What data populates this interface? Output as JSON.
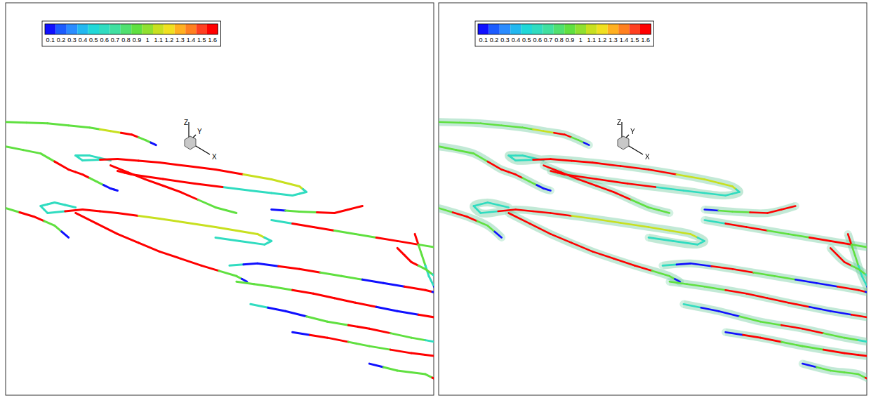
{
  "chart_data": [
    {
      "type": "line",
      "xlim": [
        0,
        612
      ],
      "ylim": [
        560,
        0
      ],
      "tick_labels": false,
      "triad": {
        "x": "X",
        "y": "Y",
        "z": "Z"
      },
      "colorbar": {
        "range": [
          0.05,
          1.65
        ],
        "ticks": [
          0.1,
          0.2,
          0.3,
          0.4,
          0.5,
          0.6,
          0.7,
          0.8,
          0.9,
          1,
          1.1,
          1.2,
          1.3,
          1.4,
          1.5,
          1.6
        ],
        "colors": [
          "#1010ff",
          "#1c5cff",
          "#2a8cff",
          "#22b8f0",
          "#20d8d8",
          "#30dcc0",
          "#40e0a0",
          "#50e070",
          "#60e040",
          "#90e030",
          "#c8e020",
          "#f0e020",
          "#ffb020",
          "#ff8020",
          "#ff4020",
          "#ff0000"
        ]
      },
      "series": [
        {
          "x": [
            0,
            60,
            120,
            150,
            180,
            200,
            215
          ],
          "y": [
            170,
            172,
            178,
            183,
            188,
            196,
            203
          ],
          "values": [
            0.9,
            0.9,
            0.9,
            1.1,
            1.6,
            0.9,
            0.1
          ]
        },
        {
          "x": [
            0,
            50,
            90,
            110,
            130,
            150,
            160
          ],
          "y": [
            205,
            215,
            238,
            245,
            255,
            265,
            268
          ],
          "values": [
            0.9,
            0.9,
            1.6,
            1.6,
            0.9,
            0.1,
            0.1
          ]
        },
        {
          "x": [
            150,
            120,
            100,
            110,
            160,
            220,
            300,
            380,
            420,
            430,
            410,
            350,
            270,
            180,
            160
          ],
          "y": [
            225,
            218,
            218,
            225,
            223,
            228,
            238,
            252,
            262,
            270,
            275,
            268,
            258,
            245,
            240
          ],
          "values": [
            0.6,
            0.6,
            0.6,
            0.6,
            1.6,
            1.6,
            1.6,
            1.1,
            1.1,
            0.6,
            0.6,
            0.6,
            1.6,
            1.6,
            1.6
          ]
        },
        {
          "x": [
            150,
            200,
            250,
            300,
            330
          ],
          "y": [
            232,
            252,
            270,
            292,
            300
          ],
          "values": [
            1.6,
            1.6,
            1.6,
            0.9,
            0.9
          ]
        },
        {
          "x": [
            0,
            40,
            70,
            90
          ],
          "y": [
            293,
            305,
            318,
            335
          ],
          "values": [
            0.9,
            1.6,
            0.9,
            0.1
          ]
        },
        {
          "x": [
            100,
            70,
            50,
            60,
            110,
            160,
            220,
            300,
            360,
            380,
            370,
            300
          ],
          "y": [
            292,
            285,
            290,
            300,
            295,
            300,
            308,
            320,
            330,
            340,
            345,
            335
          ],
          "values": [
            0.6,
            0.6,
            0.6,
            0.6,
            1.6,
            1.6,
            1.1,
            1.1,
            1.1,
            0.6,
            0.6,
            0.6
          ]
        },
        {
          "x": [
            100,
            160,
            220,
            280,
            330,
            345
          ],
          "y": [
            300,
            330,
            355,
            375,
            390,
            398
          ],
          "values": [
            1.6,
            1.6,
            1.6,
            1.6,
            0.9,
            0.1
          ]
        },
        {
          "x": [
            380,
            420,
            470,
            510
          ],
          "y": [
            295,
            298,
            300,
            290
          ],
          "values": [
            0.1,
            0.9,
            1.6,
            1.6
          ]
        },
        {
          "x": [
            380,
            440,
            500,
            560,
            620
          ],
          "y": [
            310,
            320,
            330,
            340,
            350
          ],
          "values": [
            0.6,
            1.6,
            0.9,
            1.6,
            0.9
          ]
        },
        {
          "x": [
            320,
            360,
            420,
            480,
            540,
            600,
            620
          ],
          "y": [
            375,
            372,
            380,
            390,
            400,
            410,
            415
          ],
          "values": [
            0.6,
            0.1,
            1.6,
            0.9,
            0.1,
            1.6,
            0.1
          ]
        },
        {
          "x": [
            330,
            380,
            440,
            500,
            560,
            620
          ],
          "y": [
            398,
            405,
            415,
            428,
            440,
            450
          ],
          "values": [
            0.9,
            0.9,
            1.6,
            1.6,
            0.1,
            1.6
          ]
        },
        {
          "x": [
            350,
            400,
            460,
            520,
            580,
            620
          ],
          "y": [
            430,
            440,
            455,
            465,
            478,
            485
          ],
          "values": [
            0.6,
            0.1,
            0.9,
            1.6,
            0.9,
            0.6
          ]
        },
        {
          "x": [
            410,
            460,
            520,
            580,
            620
          ],
          "y": [
            470,
            478,
            490,
            500,
            505
          ],
          "values": [
            0.1,
            1.6,
            0.9,
            1.6,
            1.6
          ]
        },
        {
          "x": [
            520,
            560,
            600,
            620
          ],
          "y": [
            515,
            525,
            530,
            540
          ],
          "values": [
            0.1,
            0.9,
            0.9,
            1.6
          ]
        },
        {
          "x": [
            585,
            595,
            605,
            620
          ],
          "y": [
            330,
            360,
            390,
            420
          ],
          "values": [
            1.6,
            0.9,
            0.6,
            0.1
          ]
        },
        {
          "x": [
            560,
            580,
            600,
            620
          ],
          "y": [
            350,
            370,
            380,
            395
          ],
          "values": [
            1.6,
            1.6,
            0.9,
            0.6
          ]
        }
      ]
    },
    {
      "type": "tube",
      "xlim": [
        0,
        612
      ],
      "ylim": [
        560,
        0
      ],
      "tick_labels": false,
      "triad": {
        "x": "X",
        "y": "Y",
        "z": "Z"
      },
      "colorbar": {
        "range": [
          0.05,
          1.65
        ],
        "ticks": [
          0.1,
          0.2,
          0.3,
          0.4,
          0.5,
          0.6,
          0.7,
          0.8,
          0.9,
          1,
          1.1,
          1.2,
          1.3,
          1.4,
          1.5,
          1.6
        ],
        "colors": [
          "#1010ff",
          "#1c5cff",
          "#2a8cff",
          "#22b8f0",
          "#20d8d8",
          "#30dcc0",
          "#40e0a0",
          "#50e070",
          "#60e040",
          "#90e030",
          "#c8e020",
          "#f0e020",
          "#ffb020",
          "#ff8020",
          "#ff4020",
          "#ff0000"
        ]
      },
      "series": [
        {
          "x": [
            0,
            60,
            120,
            150,
            180,
            200,
            215
          ],
          "y": [
            170,
            172,
            178,
            183,
            188,
            196,
            203
          ],
          "values": [
            0.9,
            0.9,
            0.9,
            1.1,
            1.6,
            0.9,
            0.1
          ]
        },
        {
          "x": [
            0,
            50,
            90,
            110,
            130,
            150,
            160
          ],
          "y": [
            205,
            215,
            238,
            245,
            255,
            265,
            268
          ],
          "values": [
            0.9,
            0.9,
            1.6,
            1.6,
            0.9,
            0.1,
            0.1
          ]
        },
        {
          "x": [
            150,
            120,
            100,
            110,
            160,
            220,
            300,
            380,
            420,
            430,
            410,
            350,
            270,
            180,
            160
          ],
          "y": [
            225,
            218,
            218,
            225,
            223,
            228,
            238,
            252,
            262,
            270,
            275,
            268,
            258,
            245,
            240
          ],
          "values": [
            0.6,
            0.6,
            0.6,
            0.6,
            1.6,
            1.6,
            1.6,
            1.1,
            1.1,
            0.6,
            0.6,
            0.6,
            1.6,
            1.6,
            1.6
          ]
        },
        {
          "x": [
            150,
            200,
            250,
            300,
            330
          ],
          "y": [
            232,
            252,
            270,
            292,
            300
          ],
          "values": [
            1.6,
            1.6,
            1.6,
            0.9,
            0.9
          ]
        },
        {
          "x": [
            0,
            40,
            70,
            90
          ],
          "y": [
            293,
            305,
            318,
            335
          ],
          "values": [
            0.9,
            1.6,
            0.9,
            0.1
          ]
        },
        {
          "x": [
            100,
            70,
            50,
            60,
            110,
            160,
            220,
            300,
            360,
            380,
            370,
            300
          ],
          "y": [
            292,
            285,
            290,
            300,
            295,
            300,
            308,
            320,
            330,
            340,
            345,
            335
          ],
          "values": [
            0.6,
            0.6,
            0.6,
            0.6,
            1.6,
            1.6,
            1.1,
            1.1,
            1.1,
            0.6,
            0.6,
            0.6
          ]
        },
        {
          "x": [
            100,
            160,
            220,
            280,
            330,
            345
          ],
          "y": [
            300,
            330,
            355,
            375,
            390,
            398
          ],
          "values": [
            1.6,
            1.6,
            1.6,
            1.6,
            0.9,
            0.1
          ]
        },
        {
          "x": [
            380,
            420,
            470,
            510
          ],
          "y": [
            295,
            298,
            300,
            290
          ],
          "values": [
            0.1,
            0.9,
            1.6,
            1.6
          ]
        },
        {
          "x": [
            380,
            440,
            500,
            560,
            620
          ],
          "y": [
            310,
            320,
            330,
            340,
            350
          ],
          "values": [
            0.6,
            1.6,
            0.9,
            1.6,
            0.9
          ]
        },
        {
          "x": [
            320,
            360,
            420,
            480,
            540,
            600,
            620
          ],
          "y": [
            375,
            372,
            380,
            390,
            400,
            410,
            415
          ],
          "values": [
            0.6,
            0.1,
            1.6,
            0.9,
            0.1,
            1.6,
            0.1
          ]
        },
        {
          "x": [
            330,
            380,
            440,
            500,
            560,
            620
          ],
          "y": [
            398,
            405,
            415,
            428,
            440,
            450
          ],
          "values": [
            0.9,
            0.9,
            1.6,
            1.6,
            0.1,
            1.6
          ]
        },
        {
          "x": [
            350,
            400,
            460,
            520,
            580,
            620
          ],
          "y": [
            430,
            440,
            455,
            465,
            478,
            485
          ],
          "values": [
            0.6,
            0.1,
            0.9,
            1.6,
            0.9,
            0.6
          ]
        },
        {
          "x": [
            410,
            460,
            520,
            580,
            620
          ],
          "y": [
            470,
            478,
            490,
            500,
            505
          ],
          "values": [
            0.1,
            1.6,
            0.9,
            1.6,
            1.6
          ]
        },
        {
          "x": [
            520,
            560,
            600,
            620
          ],
          "y": [
            515,
            525,
            530,
            540
          ],
          "values": [
            0.1,
            0.9,
            0.9,
            1.6
          ]
        },
        {
          "x": [
            585,
            595,
            605,
            620
          ],
          "y": [
            330,
            360,
            390,
            420
          ],
          "values": [
            1.6,
            0.9,
            0.6,
            0.1
          ]
        },
        {
          "x": [
            560,
            580,
            600,
            620
          ],
          "y": [
            350,
            370,
            380,
            395
          ],
          "values": [
            1.6,
            1.6,
            0.9,
            0.6
          ]
        }
      ]
    }
  ]
}
